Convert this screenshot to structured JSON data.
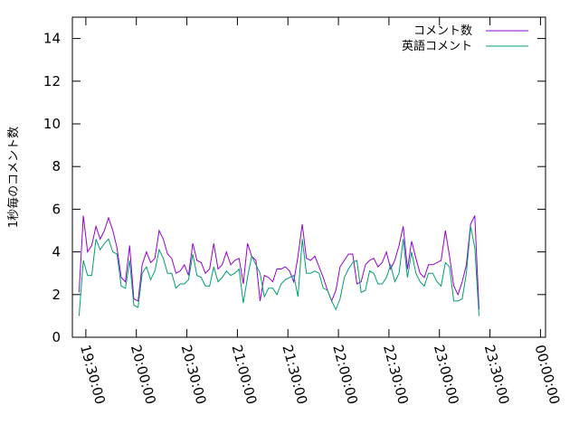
{
  "chart_data": {
    "type": "line",
    "ylabel": "1秒毎のコメント数",
    "xlabel": "",
    "title": "",
    "ylim": [
      0,
      15
    ],
    "yticks": [
      0,
      2,
      4,
      6,
      8,
      10,
      12,
      14
    ],
    "xlim": [
      "19:22:00",
      "00:03:00"
    ],
    "xticks": [
      "19:30:00",
      "20:00:00",
      "20:30:00",
      "21:00:00",
      "21:30:00",
      "22:00:00",
      "22:30:00",
      "23:00:00",
      "23:30:00",
      "00:00:00"
    ],
    "x_interval_minutes": 2.5,
    "x_start": "19:26:00",
    "legend_position": "top-right",
    "grid": false,
    "series": [
      {
        "name": "コメント数",
        "color": "#9400d3",
        "values": [
          2.1,
          5.7,
          4.0,
          4.3,
          5.2,
          4.6,
          5.0,
          5.6,
          5.0,
          4.2,
          2.8,
          2.6,
          4.3,
          1.8,
          1.7,
          3.4,
          4.0,
          3.5,
          3.7,
          5.0,
          4.6,
          3.9,
          3.7,
          3.0,
          3.1,
          3.4,
          2.9,
          4.4,
          3.6,
          3.5,
          3.0,
          3.2,
          4.4,
          3.2,
          3.4,
          4.0,
          3.4,
          3.6,
          3.7,
          2.5,
          4.4,
          3.8,
          3.6,
          1.7,
          2.9,
          2.8,
          2.6,
          3.2,
          3.2,
          3.3,
          3.1,
          2.6,
          3.8,
          5.3,
          3.7,
          3.6,
          3.8,
          3.3,
          2.8,
          2.2,
          1.7,
          2.2,
          3.3,
          3.6,
          3.9,
          3.9,
          2.5,
          2.6,
          3.4,
          3.6,
          3.7,
          3.3,
          3.5,
          4.0,
          3.2,
          3.6,
          4.3,
          5.2,
          3.2,
          4.5,
          3.7,
          3.0,
          2.8,
          3.4,
          3.4,
          3.5,
          3.6,
          5.0,
          3.8,
          2.4,
          2.0,
          2.6,
          3.4,
          5.3,
          5.7,
          1.3
        ]
      },
      {
        "name": "英語コメント",
        "color": "#009e73",
        "values": [
          1.0,
          3.6,
          2.9,
          2.9,
          4.6,
          4.1,
          4.4,
          4.6,
          4.0,
          3.9,
          2.4,
          2.3,
          3.6,
          1.5,
          1.4,
          3.0,
          3.3,
          2.7,
          3.1,
          4.1,
          3.7,
          3.0,
          3.0,
          2.3,
          2.5,
          2.5,
          2.7,
          3.9,
          2.9,
          2.8,
          2.4,
          2.4,
          3.3,
          2.6,
          2.8,
          3.1,
          2.9,
          3.0,
          3.2,
          1.6,
          2.8,
          3.8,
          3.4,
          3.0,
          1.9,
          2.3,
          2.3,
          2.0,
          2.5,
          2.7,
          2.8,
          2.9,
          1.9,
          4.6,
          3.0,
          3.0,
          3.1,
          3.0,
          2.3,
          2.2,
          1.7,
          1.3,
          1.8,
          2.8,
          3.2,
          3.5,
          3.6,
          2.1,
          2.2,
          3.1,
          3.0,
          2.5,
          2.5,
          2.8,
          3.4,
          2.6,
          3.0,
          4.6,
          2.8,
          4.0,
          3.0,
          2.6,
          2.4,
          3.0,
          3.0,
          2.6,
          2.4,
          3.5,
          3.3,
          1.7,
          1.7,
          1.8,
          3.0,
          5.2,
          4.2,
          1.0
        ]
      }
    ]
  }
}
